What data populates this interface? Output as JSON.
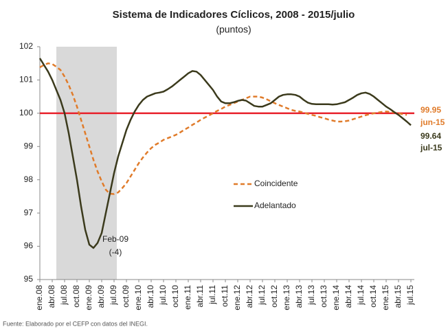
{
  "chart_data": {
    "type": "line",
    "title": "Sistema de Indicadores Cíclicos, 2008 - 2015/julio",
    "subtitle": "(puntos)",
    "source": "Fuente: Elaborado por el CEFP con datos del INEGI.",
    "categories": [
      "ene.08",
      null,
      null,
      "abr.08",
      null,
      null,
      "jul.08",
      null,
      null,
      "oct.08",
      null,
      null,
      "ene.09",
      null,
      null,
      "abr.09",
      null,
      null,
      "jul.09",
      null,
      null,
      "oct.09",
      null,
      null,
      "ene.10",
      null,
      null,
      "abr.10",
      null,
      null,
      "jul.10",
      null,
      null,
      "oct.10",
      null,
      null,
      "ene.11",
      null,
      null,
      "abr.11",
      null,
      null,
      "jul.11",
      null,
      null,
      "oct.11",
      null,
      null,
      "ene.12",
      null,
      null,
      "abr.12",
      null,
      null,
      "jul.12",
      null,
      null,
      "oct.12",
      null,
      null,
      "ene.13",
      null,
      null,
      "abr.13",
      null,
      null,
      "jul.13",
      null,
      null,
      "oct.13",
      null,
      null,
      "ene.14",
      null,
      null,
      "abr.14",
      null,
      null,
      "jul.14",
      null,
      null,
      "oct.14",
      null,
      null,
      "ene.15",
      null,
      null,
      "abr.15",
      null,
      null,
      "jul.15"
    ],
    "series": [
      {
        "name": "Coincidente",
        "color": "#e07b2a",
        "dash": true,
        "values": [
          101.38,
          101.45,
          101.5,
          101.48,
          101.4,
          101.3,
          101.1,
          100.85,
          100.55,
          100.2,
          99.8,
          99.4,
          99.0,
          98.6,
          98.25,
          97.95,
          97.7,
          97.58,
          97.57,
          97.62,
          97.75,
          97.9,
          98.1,
          98.3,
          98.5,
          98.67,
          98.82,
          98.95,
          99.05,
          99.12,
          99.2,
          99.25,
          99.3,
          99.35,
          99.42,
          99.5,
          99.57,
          99.65,
          99.72,
          99.8,
          99.87,
          99.93,
          100.0,
          100.07,
          100.13,
          100.2,
          100.25,
          100.3,
          100.35,
          100.4,
          100.45,
          100.5,
          100.5,
          100.5,
          100.47,
          100.42,
          100.36,
          100.3,
          100.25,
          100.2,
          100.15,
          100.1,
          100.07,
          100.05,
          100.02,
          99.98,
          99.95,
          99.92,
          99.88,
          99.85,
          99.81,
          99.78,
          99.75,
          99.75,
          99.76,
          99.78,
          99.82,
          99.86,
          99.9,
          99.94,
          99.97,
          100.0,
          100.02,
          100.04,
          100.05,
          100.04,
          100.02,
          100.0,
          99.97,
          99.95,
          null
        ]
      },
      {
        "name": "Adelantado",
        "color": "#3b3a1c",
        "dash": false,
        "values": [
          101.65,
          101.45,
          101.25,
          101.0,
          100.7,
          100.4,
          100.0,
          99.4,
          98.7,
          98.0,
          97.2,
          96.5,
          96.05,
          95.95,
          96.1,
          96.4,
          97.0,
          97.6,
          98.2,
          98.7,
          99.1,
          99.5,
          99.8,
          100.05,
          100.25,
          100.4,
          100.5,
          100.55,
          100.6,
          100.62,
          100.65,
          100.72,
          100.8,
          100.9,
          101.0,
          101.1,
          101.2,
          101.27,
          101.25,
          101.15,
          101.0,
          100.85,
          100.7,
          100.5,
          100.35,
          100.3,
          100.3,
          100.33,
          100.37,
          100.4,
          100.38,
          100.3,
          100.22,
          100.2,
          100.2,
          100.25,
          100.3,
          100.4,
          100.5,
          100.55,
          100.57,
          100.57,
          100.55,
          100.5,
          100.4,
          100.32,
          100.28,
          100.27,
          100.27,
          100.27,
          100.27,
          100.26,
          100.27,
          100.3,
          100.33,
          100.4,
          100.47,
          100.55,
          100.6,
          100.62,
          100.58,
          100.5,
          100.4,
          100.3,
          100.2,
          100.12,
          100.03,
          99.95,
          99.85,
          99.75,
          99.64
        ]
      }
    ],
    "reference_line": {
      "value": 100,
      "color": "#e8202a"
    },
    "annotations": [
      "99.95",
      "jun-15",
      "99.64",
      "jul-15",
      "Feb-09",
      "(-4)"
    ],
    "ylim": [
      95,
      102
    ],
    "yticks": [
      95,
      96,
      97,
      98,
      99,
      100,
      101,
      102
    ],
    "grid": false,
    "legend": "center"
  }
}
